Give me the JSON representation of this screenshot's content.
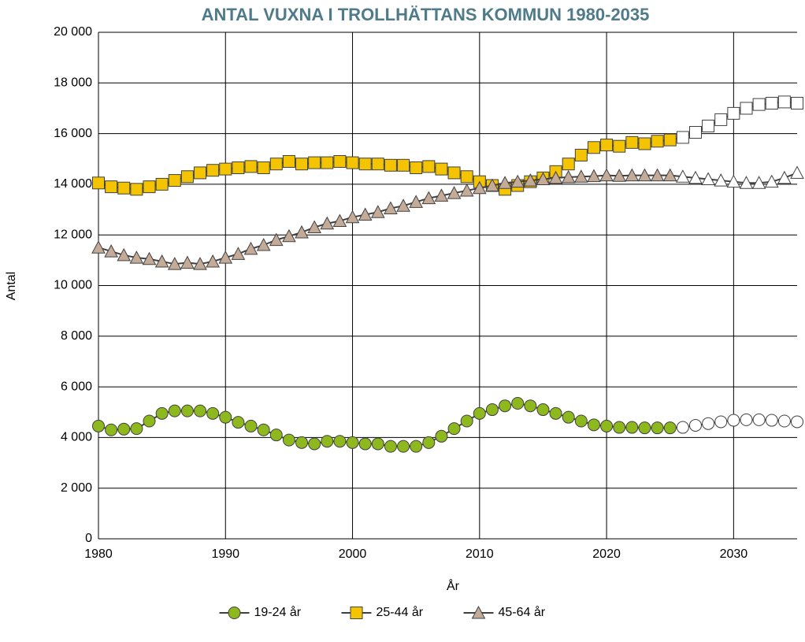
{
  "chart_data": {
    "type": "line",
    "title": "ANTAL VUXNA I TROLLHÄTTANS KOMMUN 1980-2035",
    "x_label": "År",
    "y_label": "Antal",
    "x": [
      1980,
      1981,
      1982,
      1983,
      1984,
      1985,
      1986,
      1987,
      1988,
      1989,
      1990,
      1991,
      1992,
      1993,
      1994,
      1995,
      1996,
      1997,
      1998,
      1999,
      2000,
      2001,
      2002,
      2003,
      2004,
      2005,
      2006,
      2007,
      2008,
      2009,
      2010,
      2011,
      2012,
      2013,
      2014,
      2015,
      2016,
      2017,
      2018,
      2019,
      2020,
      2021,
      2022,
      2023,
      2024,
      2025,
      2026,
      2027,
      2028,
      2029,
      2030,
      2031,
      2032,
      2033,
      2034,
      2035
    ],
    "xlim": [
      1980,
      2035
    ],
    "xticks": [
      1980,
      1990,
      2000,
      2010,
      2020,
      2030
    ],
    "ylim": [
      0,
      20000
    ],
    "yticks": [
      0,
      {
        "value": 2000,
        "label": "2 000"
      },
      {
        "value": 4000,
        "label": "4 000"
      },
      {
        "value": 6000,
        "label": "6 000"
      },
      {
        "value": 8000,
        "label": "8 000"
      },
      {
        "value": 10000,
        "label": "10 000"
      },
      {
        "value": 12000,
        "label": "12 000"
      },
      {
        "value": 14000,
        "label": "14 000"
      },
      {
        "value": 16000,
        "label": "16 000"
      },
      {
        "value": 18000,
        "label": "18 000"
      },
      {
        "value": 20000,
        "label": "20 000"
      }
    ],
    "grid": true,
    "legend": "bottom",
    "line_color": "#404040",
    "open_markers_from": 2026,
    "series": [
      {
        "name": "19-24 år",
        "color": "#8db81e",
        "marker": "circle",
        "values": [
          4450,
          4300,
          4330,
          4350,
          4650,
          4950,
          5050,
          5050,
          5050,
          4950,
          4800,
          4600,
          4450,
          4300,
          4100,
          3900,
          3800,
          3750,
          3850,
          3850,
          3800,
          3750,
          3750,
          3650,
          3650,
          3650,
          3800,
          4050,
          4350,
          4650,
          4950,
          5100,
          5250,
          5350,
          5250,
          5100,
          4950,
          4800,
          4650,
          4500,
          4450,
          4400,
          4400,
          4380,
          4380,
          4380,
          4400,
          4480,
          4550,
          4620,
          4680,
          4700,
          4700,
          4680,
          4650,
          4620
        ]
      },
      {
        "name": "25-44 år",
        "color": "#f5c400",
        "marker": "square",
        "values": [
          14050,
          13900,
          13850,
          13800,
          13900,
          14000,
          14150,
          14300,
          14450,
          14550,
          14600,
          14650,
          14700,
          14650,
          14800,
          14900,
          14800,
          14850,
          14850,
          14900,
          14850,
          14800,
          14800,
          14750,
          14750,
          14650,
          14700,
          14600,
          14450,
          14300,
          14100,
          13950,
          13800,
          13950,
          14100,
          14250,
          14500,
          14800,
          15150,
          15450,
          15550,
          15500,
          15650,
          15600,
          15700,
          15750,
          15850,
          16050,
          16300,
          16550,
          16800,
          17000,
          17150,
          17200,
          17250,
          17200
        ]
      },
      {
        "name": "45-64 år",
        "color": "#c4ab98",
        "marker": "triangle",
        "values": [
          11500,
          11350,
          11200,
          11100,
          11050,
          10950,
          10850,
          10900,
          10850,
          10950,
          11100,
          11250,
          11450,
          11600,
          11800,
          11950,
          12100,
          12300,
          12450,
          12550,
          12700,
          12800,
          12900,
          13050,
          13150,
          13300,
          13450,
          13550,
          13650,
          13750,
          13850,
          13950,
          14050,
          14100,
          14150,
          14200,
          14250,
          14280,
          14300,
          14320,
          14350,
          14330,
          14350,
          14350,
          14350,
          14350,
          14300,
          14250,
          14200,
          14150,
          14100,
          14050,
          14050,
          14100,
          14250,
          14450
        ]
      }
    ]
  }
}
